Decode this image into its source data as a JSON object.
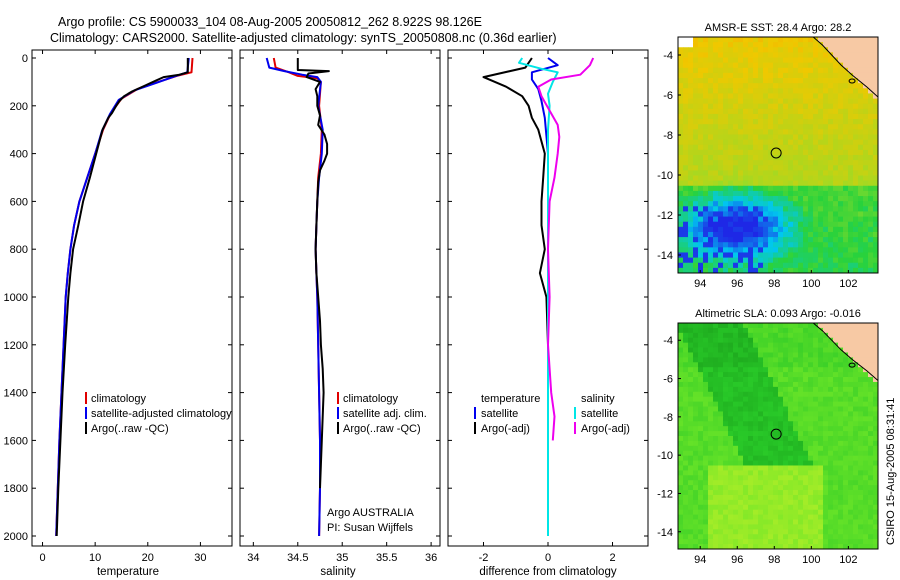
{
  "title": {
    "line1": "Argo profile: CS 5900033_104 08-Aug-2005 20050812_262 8.922S 98.126E",
    "line2": "Climatology: CARS2000. Satellite-adjusted climatology: synTS_20050808.nc (0.36d earlier)"
  },
  "side_label": "CSIRO 15-Aug-2005 08:31:41",
  "colors": {
    "clim": "#e00000",
    "sat": "#0000ee",
    "argo": "#000000",
    "sal_sat": "#00e6e6",
    "sal_argo": "#ee00ee"
  },
  "chart_data": [
    {
      "type": "line",
      "id": "temperature",
      "xlabel": "temperature",
      "xlim": [
        -2,
        36
      ],
      "ylim": [
        0,
        2050
      ],
      "xticks": [
        0,
        10,
        20,
        30
      ],
      "yticks": [
        0,
        200,
        400,
        600,
        800,
        1000,
        1200,
        1400,
        1600,
        1800,
        2000
      ],
      "legend": [
        "climatology",
        "satellite-adjusted climatology",
        "Argo(..raw -QC)"
      ],
      "series": [
        {
          "name": "climatology",
          "color": "#e00000",
          "points": [
            [
              28.5,
              0
            ],
            [
              28.3,
              60
            ],
            [
              25.5,
              75
            ],
            [
              22,
              100
            ],
            [
              18,
              130
            ],
            [
              15,
              170
            ],
            [
              13,
              230
            ],
            [
              11.5,
              300
            ],
            [
              10,
              400
            ],
            [
              8.5,
              500
            ],
            [
              7,
              600
            ],
            [
              6,
              700
            ],
            [
              5.3,
              800
            ],
            [
              4.8,
              900
            ],
            [
              4.4,
              1000
            ],
            [
              4,
              1200
            ],
            [
              3.6,
              1400
            ],
            [
              3.2,
              1600
            ],
            [
              2.9,
              1800
            ],
            [
              2.6,
              2000
            ]
          ]
        },
        {
          "name": "satellite-adjusted",
          "color": "#0000ee",
          "points": [
            [
              27.8,
              0
            ],
            [
              27.5,
              60
            ],
            [
              25,
              78
            ],
            [
              21.5,
              105
            ],
            [
              17.5,
              135
            ],
            [
              14.5,
              175
            ],
            [
              12.8,
              235
            ],
            [
              11.3,
              305
            ],
            [
              10,
              400
            ],
            [
              8.5,
              500
            ],
            [
              7,
              600
            ],
            [
              6,
              700
            ],
            [
              5.3,
              800
            ],
            [
              4.8,
              900
            ],
            [
              4.4,
              1000
            ],
            [
              4,
              1200
            ],
            [
              3.6,
              1400
            ],
            [
              3.2,
              1600
            ],
            [
              2.9,
              1800
            ],
            [
              2.6,
              2000
            ]
          ]
        },
        {
          "name": "Argo",
          "color": "#000000",
          "points": [
            [
              27.6,
              0
            ],
            [
              27.6,
              60
            ],
            [
              26,
              70
            ],
            [
              23,
              80
            ],
            [
              21.5,
              95
            ],
            [
              19.5,
              115
            ],
            [
              17,
              140
            ],
            [
              15.5,
              160
            ],
            [
              14.6,
              180
            ],
            [
              14,
              200
            ],
            [
              13.2,
              230
            ],
            [
              12.5,
              250
            ],
            [
              11.4,
              300
            ],
            [
              10.2,
              400
            ],
            [
              9,
              500
            ],
            [
              7.7,
              600
            ],
            [
              6.8,
              700
            ],
            [
              5.8,
              800
            ],
            [
              5.3,
              900
            ],
            [
              4.9,
              1000
            ],
            [
              4.3,
              1200
            ],
            [
              3.8,
              1400
            ],
            [
              3.4,
              1600
            ],
            [
              3,
              1800
            ],
            [
              2.7,
              2000
            ]
          ]
        }
      ]
    },
    {
      "type": "line",
      "id": "salinity",
      "xlabel": "salinity",
      "xlim": [
        33.85,
        36.1
      ],
      "ylim": [
        0,
        2050
      ],
      "xticks": [
        34,
        34.5,
        35,
        35.5,
        36
      ],
      "legend": [
        "climatology",
        "satellite adj. clim.",
        "Argo(..raw -QC)"
      ],
      "annotation": [
        "Argo AUSTRALIA",
        "PI: Susan Wijffels"
      ],
      "series": [
        {
          "name": "climatology",
          "color": "#e00000",
          "points": [
            [
              34.23,
              0
            ],
            [
              34.25,
              40
            ],
            [
              34.4,
              60
            ],
            [
              34.5,
              75
            ],
            [
              34.72,
              85
            ],
            [
              34.76,
              100
            ],
            [
              34.74,
              200
            ],
            [
              34.77,
              300
            ],
            [
              34.76,
              400
            ],
            [
              34.73,
              500
            ],
            [
              34.72,
              600
            ],
            [
              34.71,
              700
            ],
            [
              34.7,
              800
            ],
            [
              34.71,
              900
            ],
            [
              34.72,
              1000
            ],
            [
              34.73,
              1200
            ],
            [
              34.74,
              1400
            ],
            [
              34.75,
              1600
            ],
            [
              34.75,
              1800
            ],
            [
              34.74,
              2000
            ]
          ]
        },
        {
          "name": "satellite adj.",
          "color": "#0000ee",
          "points": [
            [
              34.15,
              0
            ],
            [
              34.18,
              40
            ],
            [
              34.35,
              55
            ],
            [
              34.55,
              70
            ],
            [
              34.72,
              80
            ],
            [
              34.76,
              100
            ],
            [
              34.73,
              200
            ],
            [
              34.78,
              300
            ],
            [
              34.77,
              400
            ],
            [
              34.74,
              500
            ],
            [
              34.72,
              600
            ],
            [
              34.71,
              700
            ],
            [
              34.7,
              800
            ],
            [
              34.71,
              900
            ],
            [
              34.72,
              1000
            ],
            [
              34.73,
              1200
            ],
            [
              34.74,
              1400
            ],
            [
              34.75,
              1600
            ],
            [
              34.75,
              1800
            ],
            [
              34.74,
              2000
            ]
          ]
        },
        {
          "name": "Argo",
          "color": "#000000",
          "points": [
            [
              34.5,
              0
            ],
            [
              34.5,
              50
            ],
            [
              34.85,
              55
            ],
            [
              34.62,
              65
            ],
            [
              34.6,
              80
            ],
            [
              34.75,
              100
            ],
            [
              34.7,
              130
            ],
            [
              34.72,
              160
            ],
            [
              34.72,
              200
            ],
            [
              34.75,
              240
            ],
            [
              34.73,
              280
            ],
            [
              34.8,
              320
            ],
            [
              34.83,
              360
            ],
            [
              34.83,
              400
            ],
            [
              34.8,
              430
            ],
            [
              34.75,
              470
            ],
            [
              34.73,
              520
            ],
            [
              34.72,
              600
            ],
            [
              34.71,
              700
            ],
            [
              34.7,
              800
            ],
            [
              34.71,
              900
            ],
            [
              34.73,
              1000
            ],
            [
              34.75,
              1100
            ],
            [
              34.76,
              1200
            ],
            [
              34.78,
              1300
            ],
            [
              34.79,
              1400
            ],
            [
              34.78,
              1500
            ],
            [
              34.77,
              1600
            ],
            [
              34.76,
              1700
            ],
            [
              34.75,
              1800
            ]
          ]
        }
      ]
    },
    {
      "type": "line",
      "id": "difference",
      "xlabel": "difference from climatology",
      "xlim": [
        -3.1,
        3.1
      ],
      "ylim": [
        0,
        2050
      ],
      "xticks": [
        -2,
        0,
        2
      ],
      "legend_temp": [
        "temperature",
        "satellite",
        "Argo(-adj)"
      ],
      "legend_sal": [
        "salinity",
        "satellite",
        "Argo(-adj)"
      ],
      "series": [
        {
          "name": "temp satellite",
          "color": "#0000ee",
          "points": [
            [
              0,
              0
            ],
            [
              0.3,
              30
            ],
            [
              -0.5,
              60
            ],
            [
              -0.5,
              90
            ],
            [
              -0.3,
              130
            ],
            [
              -0.2,
              180
            ],
            [
              -0.1,
              250
            ],
            [
              0,
              400
            ],
            [
              0,
              600
            ],
            [
              0,
              800
            ],
            [
              0,
              1000
            ],
            [
              0,
              1200
            ],
            [
              0,
              1400
            ],
            [
              0,
              1600
            ],
            [
              0,
              1800
            ],
            [
              0,
              2000
            ]
          ]
        },
        {
          "name": "temp Argo",
          "color": "#000000",
          "points": [
            [
              -0.5,
              0
            ],
            [
              -0.7,
              40
            ],
            [
              -2.0,
              80
            ],
            [
              -1.3,
              120
            ],
            [
              -0.8,
              160
            ],
            [
              -0.6,
              200
            ],
            [
              -0.5,
              250
            ],
            [
              -0.3,
              300
            ],
            [
              -0.1,
              400
            ],
            [
              -0.15,
              500
            ],
            [
              -0.2,
              600
            ],
            [
              -0.2,
              700
            ],
            [
              -0.1,
              800
            ],
            [
              -0.25,
              900
            ],
            [
              -0.05,
              1000
            ],
            [
              0,
              1200
            ],
            [
              0,
              1400
            ],
            [
              0,
              1600
            ],
            [
              0,
              1800
            ],
            [
              0,
              2000
            ]
          ]
        },
        {
          "name": "sal satellite",
          "color": "#00e6e6",
          "points": [
            [
              -0.8,
              0
            ],
            [
              -0.9,
              20
            ],
            [
              -0.2,
              45
            ],
            [
              0.3,
              60
            ],
            [
              0.15,
              100
            ],
            [
              0,
              150
            ],
            [
              0.05,
              200
            ],
            [
              0,
              300
            ],
            [
              0,
              400
            ],
            [
              0,
              600
            ],
            [
              0,
              800
            ],
            [
              0,
              1000
            ],
            [
              0,
              1200
            ],
            [
              0,
              1400
            ],
            [
              0,
              1600
            ],
            [
              0,
              1800
            ],
            [
              0,
              2000
            ]
          ]
        },
        {
          "name": "sal Argo",
          "color": "#ee00ee",
          "points": [
            [
              1.4,
              0
            ],
            [
              1.3,
              30
            ],
            [
              1.0,
              70
            ],
            [
              0.1,
              90
            ],
            [
              -0.3,
              120
            ],
            [
              -0.2,
              160
            ],
            [
              0.05,
              220
            ],
            [
              0.3,
              280
            ],
            [
              0.35,
              330
            ],
            [
              0.3,
              400
            ],
            [
              0.2,
              500
            ],
            [
              0.05,
              600
            ],
            [
              0,
              800
            ],
            [
              0.05,
              1000
            ],
            [
              0,
              1200
            ],
            [
              0.1,
              1400
            ],
            [
              0.2,
              1500
            ],
            [
              0.15,
              1600
            ]
          ]
        }
      ]
    },
    {
      "type": "heatmap",
      "id": "sst",
      "title": "AMSR-E SST: 28.4 Argo: 28.2",
      "xlim": [
        92.8,
        103.6
      ],
      "ylim": [
        -14.9,
        -3.1
      ],
      "xticks": [
        94,
        96,
        98,
        100,
        102
      ],
      "yticks": [
        -4,
        -6,
        -8,
        -10,
        -12,
        -14
      ],
      "marker": [
        98.1,
        -8.9
      ]
    },
    {
      "type": "heatmap",
      "id": "sla",
      "title": "Altimetric SLA: 0.093 Argo: -0.016",
      "xlim": [
        92.8,
        103.6
      ],
      "ylim": [
        -14.9,
        -3.1
      ],
      "xticks": [
        94,
        96,
        98,
        100,
        102
      ],
      "yticks": [
        -4,
        -6,
        -8,
        -10,
        -12,
        -14
      ],
      "marker": [
        98.1,
        -8.9
      ]
    }
  ]
}
